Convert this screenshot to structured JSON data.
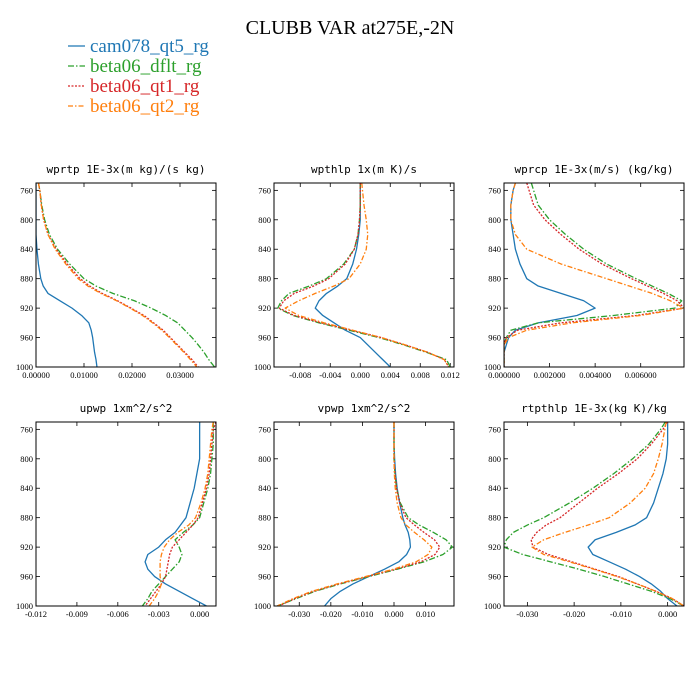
{
  "title": "CLUBB VAR at275E,-2N",
  "series_styles": [
    {
      "name": "cam078_qt5_rg",
      "color": "#1f77b4",
      "dash": ""
    },
    {
      "name": "beta06_dflt_rg",
      "color": "#2ca02c",
      "dash": "6,2,1.5,2"
    },
    {
      "name": "beta06_qt1_rg",
      "color": "#d62728",
      "dash": "2,1.5"
    },
    {
      "name": "beta06_qt2_rg",
      "color": "#ff7f0e",
      "dash": "5,2,1.5,2"
    }
  ],
  "chart_data": [
    {
      "type": "line",
      "title": "wprtp  1E-3x(m kg)/(s kg)",
      "xlim": [
        0,
        0.0375
      ],
      "ylim": [
        1000,
        750
      ],
      "xticks": [
        0,
        0.01,
        0.02,
        0.03
      ],
      "xtick_labels": [
        "0.00000",
        "0.01000",
        "0.02000",
        "0.03000"
      ],
      "yticks": [
        760,
        800,
        840,
        880,
        920,
        960,
        1000
      ],
      "ytick_labels": [
        "760",
        "800",
        "840",
        "880",
        "920",
        "960",
        "1000"
      ],
      "y": [
        750,
        760,
        780,
        800,
        820,
        840,
        860,
        880,
        890,
        900,
        910,
        920,
        930,
        940,
        950,
        960,
        970,
        980,
        990,
        1000
      ],
      "series": [
        {
          "name": "cam078_qt5_rg",
          "values": [
            0,
            0,
            0,
            0,
            0,
            0.0002,
            0.0005,
            0.001,
            0.0015,
            0.0025,
            0.005,
            0.0075,
            0.0095,
            0.011,
            0.0115,
            0.0118,
            0.012,
            0.0122,
            0.0125,
            0.0127
          ]
        },
        {
          "name": "beta06_dflt_rg",
          "values": [
            0.0005,
            0.0008,
            0.0012,
            0.0018,
            0.0028,
            0.0045,
            0.007,
            0.01,
            0.0125,
            0.016,
            0.0205,
            0.024,
            0.027,
            0.0295,
            0.031,
            0.0325,
            0.0338,
            0.035,
            0.036,
            0.0372
          ]
        },
        {
          "name": "beta06_qt1_rg",
          "values": [
            0.0005,
            0.0008,
            0.0011,
            0.0016,
            0.0025,
            0.0042,
            0.0065,
            0.0092,
            0.0112,
            0.0138,
            0.017,
            0.0198,
            0.0225,
            0.0245,
            0.0265,
            0.028,
            0.0295,
            0.031,
            0.0325,
            0.0338
          ]
        },
        {
          "name": "beta06_qt2_rg",
          "values": [
            0.0005,
            0.0008,
            0.0011,
            0.0016,
            0.0025,
            0.004,
            0.0062,
            0.0088,
            0.0108,
            0.0135,
            0.0168,
            0.0196,
            0.0222,
            0.0243,
            0.0262,
            0.0278,
            0.0293,
            0.0308,
            0.0322,
            0.0335
          ]
        }
      ]
    },
    {
      "type": "line",
      "title": "wpthlp  1x(m K)/s",
      "xlim": [
        -0.0115,
        0.0125
      ],
      "ylim": [
        1000,
        750
      ],
      "xticks": [
        -0.008,
        -0.004,
        0,
        0.004,
        0.008,
        0.012
      ],
      "xtick_labels": [
        "-0.008",
        "-0.004",
        "0.000",
        "0.004",
        "0.008",
        "0.012"
      ],
      "yticks": [
        760,
        800,
        840,
        880,
        920,
        960,
        1000
      ],
      "ytick_labels": [
        "760",
        "800",
        "840",
        "880",
        "920",
        "960",
        "1000"
      ],
      "y": [
        750,
        760,
        780,
        800,
        820,
        840,
        860,
        880,
        890,
        900,
        910,
        920,
        930,
        940,
        950,
        960,
        970,
        980,
        990,
        1000
      ],
      "series": [
        {
          "name": "cam078_qt5_rg",
          "values": [
            0,
            0,
            0,
            0,
            -0.0002,
            -0.0005,
            -0.001,
            -0.0018,
            -0.003,
            -0.0045,
            -0.0055,
            -0.006,
            -0.005,
            -0.0035,
            -0.002,
            0,
            0.001,
            0.002,
            0.003,
            0.004
          ]
        },
        {
          "name": "beta06_dflt_rg",
          "values": [
            0,
            0,
            0,
            -0.0001,
            -0.0003,
            -0.0008,
            -0.0022,
            -0.0045,
            -0.0068,
            -0.0095,
            -0.0105,
            -0.011,
            -0.009,
            -0.0055,
            -0.0015,
            0.0025,
            0.0058,
            0.0088,
            0.0115,
            0.012
          ]
        },
        {
          "name": "beta06_qt1_rg",
          "values": [
            0,
            0,
            0,
            -0.0001,
            -0.0003,
            -0.0008,
            -0.002,
            -0.0042,
            -0.0062,
            -0.0088,
            -0.0102,
            -0.0108,
            -0.0088,
            -0.0052,
            -0.0012,
            0.0028,
            0.006,
            0.009,
            0.0112,
            0.0118
          ]
        },
        {
          "name": "beta06_qt2_rg",
          "values": [
            0.0002,
            0.0003,
            0.0005,
            0.0008,
            0.001,
            0.0008,
            0,
            -0.0015,
            -0.0035,
            -0.006,
            -0.0082,
            -0.01,
            -0.0082,
            -0.0048,
            -0.001,
            0.0028,
            0.006,
            0.009,
            0.0112,
            0.0118
          ]
        }
      ]
    },
    {
      "type": "line",
      "title": "wprcp  1E-3x(m/s) (kg/kg)",
      "xlim": [
        0,
        0.0079
      ],
      "ylim": [
        1000,
        750
      ],
      "xticks": [
        0,
        0.002,
        0.004,
        0.006
      ],
      "xtick_labels": [
        "0.000000",
        "0.002000",
        "0.004000",
        "0.006000"
      ],
      "yticks": [
        760,
        800,
        840,
        880,
        920,
        960,
        1000
      ],
      "ytick_labels": [
        "760",
        "800",
        "840",
        "880",
        "920",
        "960",
        "1000"
      ],
      "y": [
        750,
        760,
        780,
        800,
        820,
        840,
        860,
        880,
        890,
        900,
        910,
        920,
        930,
        940,
        950,
        960,
        970,
        980,
        990,
        1000
      ],
      "series": [
        {
          "name": "cam078_qt5_rg",
          "values": [
            0.0005,
            0.0004,
            0.0003,
            0.0003,
            0.0004,
            0.0005,
            0.0007,
            0.001,
            0.0015,
            0.0025,
            0.0035,
            0.004,
            0.0032,
            0.0015,
            0.0005,
            0.0002,
            0.0001,
            0,
            0,
            0
          ]
        },
        {
          "name": "beta06_dflt_rg",
          "values": [
            0.0012,
            0.0013,
            0.0015,
            0.002,
            0.0027,
            0.0035,
            0.0045,
            0.0058,
            0.0065,
            0.0072,
            0.0078,
            0.0075,
            0.0048,
            0.0015,
            0.0003,
            0.0001,
            0,
            0,
            0,
            0
          ]
        },
        {
          "name": "beta06_qt1_rg",
          "values": [
            0.001,
            0.0011,
            0.0013,
            0.0018,
            0.0025,
            0.0033,
            0.0043,
            0.0056,
            0.0063,
            0.007,
            0.0076,
            0.0079,
            0.0058,
            0.0025,
            0.0006,
            0.0001,
            0,
            0,
            0,
            0
          ]
        },
        {
          "name": "beta06_qt2_rg",
          "values": [
            0.0005,
            0.0004,
            0.0003,
            0.0003,
            0.0005,
            0.001,
            0.0025,
            0.0045,
            0.0055,
            0.0065,
            0.0073,
            0.0079,
            0.006,
            0.003,
            0.001,
            0.0002,
            0,
            0,
            0,
            0
          ]
        }
      ]
    },
    {
      "type": "line",
      "title": "upwp  1xm^2/s^2",
      "xlim": [
        -0.012,
        0.0012
      ],
      "ylim": [
        1000,
        750
      ],
      "xticks": [
        -0.012,
        -0.009,
        -0.006,
        -0.003,
        0
      ],
      "xtick_labels": [
        "-0.012",
        "-0.009",
        "-0.006",
        "-0.003",
        "0.000"
      ],
      "yticks": [
        760,
        800,
        840,
        880,
        920,
        960,
        1000
      ],
      "ytick_labels": [
        "760",
        "800",
        "840",
        "880",
        "920",
        "960",
        "1000"
      ],
      "y": [
        750,
        760,
        780,
        800,
        820,
        840,
        860,
        880,
        890,
        900,
        910,
        920,
        930,
        940,
        950,
        960,
        970,
        980,
        990,
        1000
      ],
      "series": [
        {
          "name": "cam078_qt5_rg",
          "values": [
            0,
            0,
            0,
            0,
            -0.0002,
            -0.0004,
            -0.0007,
            -0.001,
            -0.0014,
            -0.0018,
            -0.0025,
            -0.003,
            -0.0038,
            -0.004,
            -0.0038,
            -0.0033,
            -0.0025,
            -0.0015,
            -0.0005,
            0.0005
          ]
        },
        {
          "name": "beta06_dflt_rg",
          "values": [
            0.001,
            0.001,
            0.001,
            0.0009,
            0.0008,
            0.0006,
            0.0003,
            0,
            -0.0005,
            -0.0012,
            -0.0018,
            -0.0015,
            -0.0013,
            -0.0015,
            -0.002,
            -0.0025,
            -0.003,
            -0.0035,
            -0.0038,
            -0.0042
          ]
        },
        {
          "name": "beta06_qt1_rg",
          "values": [
            0.0012,
            0.001,
            0.0009,
            0.0008,
            0.0007,
            0.0005,
            0.0002,
            -0.0001,
            -0.0005,
            -0.001,
            -0.0015,
            -0.002,
            -0.0022,
            -0.0023,
            -0.0024,
            -0.0025,
            -0.0028,
            -0.0032,
            -0.0036,
            -0.004
          ]
        },
        {
          "name": "beta06_qt2_rg",
          "values": [
            0.001,
            0.0009,
            0.0008,
            0.0007,
            0.0006,
            0.0004,
            0.0001,
            -0.0003,
            -0.0008,
            -0.0016,
            -0.0022,
            -0.0026,
            -0.0028,
            -0.0029,
            -0.0029,
            -0.0029,
            -0.0028,
            -0.003,
            -0.0033,
            -0.0037
          ]
        }
      ]
    },
    {
      "type": "line",
      "title": "vpwp  1xm^2/s^2",
      "xlim": [
        -0.038,
        0.019
      ],
      "ylim": [
        1000,
        750
      ],
      "xticks": [
        -0.03,
        -0.02,
        -0.01,
        0,
        0.01
      ],
      "xtick_labels": [
        "-0.030",
        "-0.020",
        "-0.010",
        "0.000",
        "0.010"
      ],
      "yticks": [
        760,
        800,
        840,
        880,
        920,
        960,
        1000
      ],
      "ytick_labels": [
        "760",
        "800",
        "840",
        "880",
        "920",
        "960",
        "1000"
      ],
      "y": [
        750,
        760,
        780,
        800,
        820,
        840,
        860,
        880,
        890,
        900,
        910,
        920,
        930,
        940,
        950,
        960,
        970,
        980,
        990,
        1000
      ],
      "series": [
        {
          "name": "cam078_qt5_rg",
          "values": [
            0,
            0,
            0,
            0.0002,
            0.0005,
            0.001,
            0.0018,
            0.0028,
            0.0035,
            0.0045,
            0.005,
            0.0052,
            0.004,
            0.0015,
            -0.003,
            -0.008,
            -0.013,
            -0.017,
            -0.02,
            -0.022
          ]
        },
        {
          "name": "beta06_dflt_rg",
          "values": [
            0,
            0,
            0,
            0,
            0.0003,
            0.0008,
            0.002,
            0.0045,
            0.008,
            0.0125,
            0.0165,
            0.0185,
            0.0155,
            0.0095,
            0.001,
            -0.008,
            -0.017,
            -0.025,
            -0.031,
            -0.037
          ]
        },
        {
          "name": "beta06_qt1_rg",
          "values": [
            0,
            0,
            0,
            0,
            0.0003,
            0.0008,
            0.0018,
            0.0038,
            0.0065,
            0.0095,
            0.0128,
            0.0145,
            0.013,
            0.0085,
            0.0005,
            -0.0085,
            -0.0175,
            -0.0255,
            -0.0315,
            -0.0365
          ]
        },
        {
          "name": "beta06_qt2_rg",
          "values": [
            0,
            0,
            0,
            0,
            0.0001,
            0.0004,
            0.001,
            0.0022,
            0.0038,
            0.0065,
            0.0095,
            0.012,
            0.0108,
            0.007,
            -0.0002,
            -0.009,
            -0.018,
            -0.026,
            -0.032,
            -0.037
          ]
        }
      ]
    },
    {
      "type": "line",
      "title": "rtpthlp  1E-3x(kg K)/kg",
      "xlim": [
        -0.035,
        0.0035
      ],
      "ylim": [
        1000,
        750
      ],
      "xticks": [
        -0.03,
        -0.02,
        -0.01,
        0
      ],
      "xtick_labels": [
        "-0.030",
        "-0.020",
        "-0.010",
        "0.000"
      ],
      "yticks": [
        760,
        800,
        840,
        880,
        920,
        960,
        1000
      ],
      "ytick_labels": [
        "760",
        "800",
        "840",
        "880",
        "920",
        "960",
        "1000"
      ],
      "y": [
        750,
        760,
        780,
        800,
        820,
        840,
        860,
        880,
        890,
        900,
        910,
        920,
        930,
        940,
        950,
        960,
        970,
        980,
        990,
        1000
      ],
      "series": [
        {
          "name": "cam078_qt5_rg",
          "values": [
            0,
            0,
            0,
            -0.0003,
            -0.001,
            -0.002,
            -0.003,
            -0.0045,
            -0.007,
            -0.011,
            -0.0155,
            -0.017,
            -0.016,
            -0.0125,
            -0.009,
            -0.006,
            -0.0035,
            -0.0015,
            0,
            0.002
          ]
        },
        {
          "name": "beta06_dflt_rg",
          "values": [
            -0.0005,
            -0.0015,
            -0.004,
            -0.0075,
            -0.0115,
            -0.016,
            -0.021,
            -0.0265,
            -0.03,
            -0.033,
            -0.0345,
            -0.035,
            -0.031,
            -0.025,
            -0.019,
            -0.0135,
            -0.0085,
            -0.0035,
            0.0005,
            0.0035
          ]
        },
        {
          "name": "beta06_qt1_rg",
          "values": [
            0,
            -0.001,
            -0.0035,
            -0.0065,
            -0.0105,
            -0.015,
            -0.019,
            -0.023,
            -0.026,
            -0.028,
            -0.0292,
            -0.0288,
            -0.0255,
            -0.0205,
            -0.0155,
            -0.0105,
            -0.0065,
            -0.0025,
            0.001,
            0.0035
          ]
        },
        {
          "name": "beta06_qt2_rg",
          "values": [
            -0.0003,
            -0.0006,
            -0.0012,
            -0.002,
            -0.003,
            -0.0048,
            -0.008,
            -0.0125,
            -0.017,
            -0.022,
            -0.0265,
            -0.029,
            -0.0265,
            -0.021,
            -0.0158,
            -0.0108,
            -0.0065,
            -0.0025,
            0.001,
            0.0035
          ]
        }
      ]
    }
  ]
}
